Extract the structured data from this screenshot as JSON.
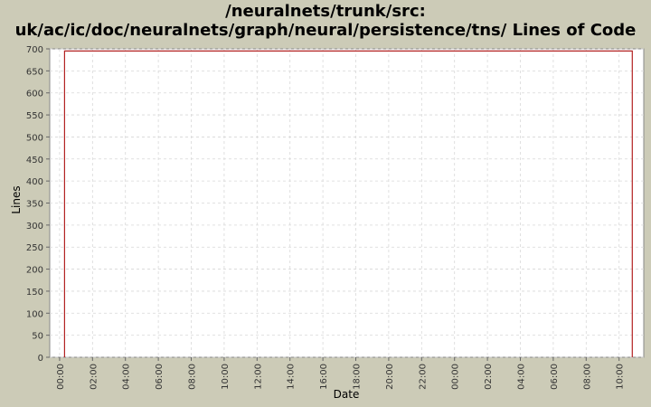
{
  "chart_data": {
    "type": "line",
    "title_line1": "/neuralnets/trunk/src:",
    "title_line2": "uk/ac/ic/doc/neuralnets/graph/neural/persistence/tns/ Lines of Code",
    "xlabel": "Date",
    "ylabel": "Lines",
    "ylim": [
      0,
      700
    ],
    "y_ticks": [
      0,
      50,
      100,
      150,
      200,
      250,
      300,
      350,
      400,
      450,
      500,
      550,
      600,
      650,
      700
    ],
    "x_ticks": [
      "00:00",
      "02:00",
      "04:00",
      "06:00",
      "08:00",
      "10:00",
      "12:00",
      "14:00",
      "16:00",
      "18:00",
      "20:00",
      "22:00",
      "00:00",
      "02:00",
      "04:00",
      "06:00",
      "08:00",
      "10:00"
    ],
    "x_tick_hours": [
      0,
      2,
      4,
      6,
      8,
      10,
      12,
      14,
      16,
      18,
      20,
      22,
      24,
      26,
      28,
      30,
      32,
      34
    ],
    "xlim_hours": [
      -0.6,
      35.5
    ],
    "grid": true,
    "series": [
      {
        "color": "#b22222",
        "points": [
          {
            "x_hours": 0.3,
            "y": 0
          },
          {
            "x_hours": 0.3,
            "y": 695
          },
          {
            "x_hours": 34.8,
            "y": 695
          },
          {
            "x_hours": 34.8,
            "y": 0
          }
        ]
      }
    ]
  }
}
